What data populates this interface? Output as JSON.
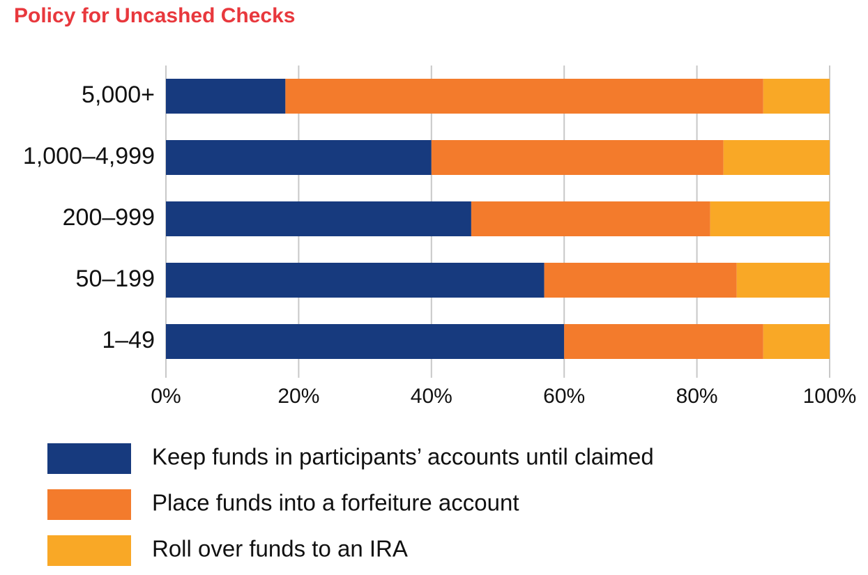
{
  "chart_data": {
    "type": "stacked-bar-horizontal",
    "title": "Policy for Uncashed Checks",
    "categories": [
      "5,000+",
      "1,000–4,999",
      "200–999",
      "50–199",
      "1–49"
    ],
    "series": [
      {
        "name": "Keep funds in participants’ accounts until claimed",
        "color": "#173a7e",
        "values": [
          18,
          40,
          46,
          57,
          60
        ]
      },
      {
        "name": "Place funds into a forfeiture account",
        "color": "#f37b2c",
        "values": [
          72,
          44,
          36,
          29,
          30
        ]
      },
      {
        "name": "Roll over funds to an IRA",
        "color": "#f9a826",
        "values": [
          10,
          16,
          18,
          14,
          10
        ]
      }
    ],
    "xlim": [
      0,
      100
    ],
    "xticks": [
      {
        "value": 0,
        "label": "0%"
      },
      {
        "value": 20,
        "label": "20%"
      },
      {
        "value": 40,
        "label": "40%"
      },
      {
        "value": 60,
        "label": "60%"
      },
      {
        "value": 80,
        "label": "80%"
      },
      {
        "value": 100,
        "label": "100%"
      }
    ],
    "grid": true
  }
}
